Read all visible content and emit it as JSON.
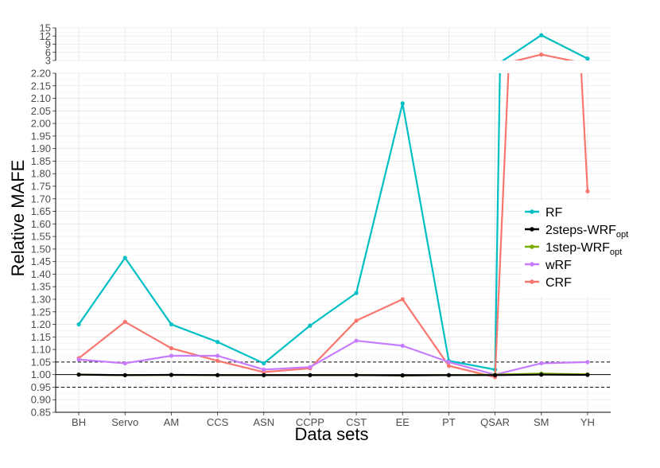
{
  "chart_data": {
    "type": "line",
    "xlabel": "Data sets",
    "ylabel": "Relative MAFE",
    "categories": [
      "BH",
      "Servo",
      "AM",
      "CCS",
      "ASN",
      "CCPP",
      "CST",
      "EE",
      "PT",
      "QSAR",
      "SM",
      "YH"
    ],
    "ylim_lower": [
      0.85,
      2.2
    ],
    "ylim_upper": [
      3,
      15
    ],
    "yticks_lower": [
      "0.85",
      "0.90",
      "0.95",
      "1.00",
      "1.05",
      "1.10",
      "1.15",
      "1.20",
      "1.25",
      "1.30",
      "1.35",
      "1.40",
      "1.45",
      "1.50",
      "1.55",
      "1.60",
      "1.65",
      "1.70",
      "1.75",
      "1.80",
      "1.85",
      "1.90",
      "1.95",
      "2.00",
      "2.05",
      "2.10",
      "2.15",
      "2.20"
    ],
    "yticks_upper": [
      "3",
      "6",
      "9",
      "12",
      "15"
    ],
    "reference_lines": [
      0.95,
      1.0,
      1.05
    ],
    "grid": true,
    "legend_position": "right",
    "series": [
      {
        "name": "RF",
        "color": "#00bfc4",
        "values": [
          1.2,
          1.465,
          1.2,
          1.13,
          1.045,
          1.195,
          1.325,
          2.08,
          1.055,
          1.02,
          12.3,
          3.7
        ]
      },
      {
        "name": "2steps-WRF",
        "sub": "opt",
        "color": "#000000",
        "values": [
          1.0,
          0.998,
          0.999,
          0.998,
          0.998,
          0.998,
          0.998,
          0.997,
          0.998,
          0.998,
          1.0,
          0.999
        ]
      },
      {
        "name": "1step-WRF",
        "sub": "opt",
        "color": "#7cae00",
        "values": [
          1.0,
          0.998,
          0.999,
          0.998,
          0.998,
          0.998,
          0.998,
          0.997,
          0.998,
          1.0,
          1.004,
          1.001
        ]
      },
      {
        "name": "wRF",
        "color": "#c77cff",
        "values": [
          1.06,
          1.045,
          1.075,
          1.075,
          1.02,
          1.03,
          1.135,
          1.115,
          1.05,
          1.0,
          1.045,
          1.05
        ]
      },
      {
        "name": "CRF",
        "color": "#f8766d",
        "values": [
          1.065,
          1.21,
          1.105,
          1.055,
          1.01,
          1.025,
          1.215,
          1.3,
          1.035,
          0.99,
          5.2,
          1.73
        ]
      }
    ]
  }
}
